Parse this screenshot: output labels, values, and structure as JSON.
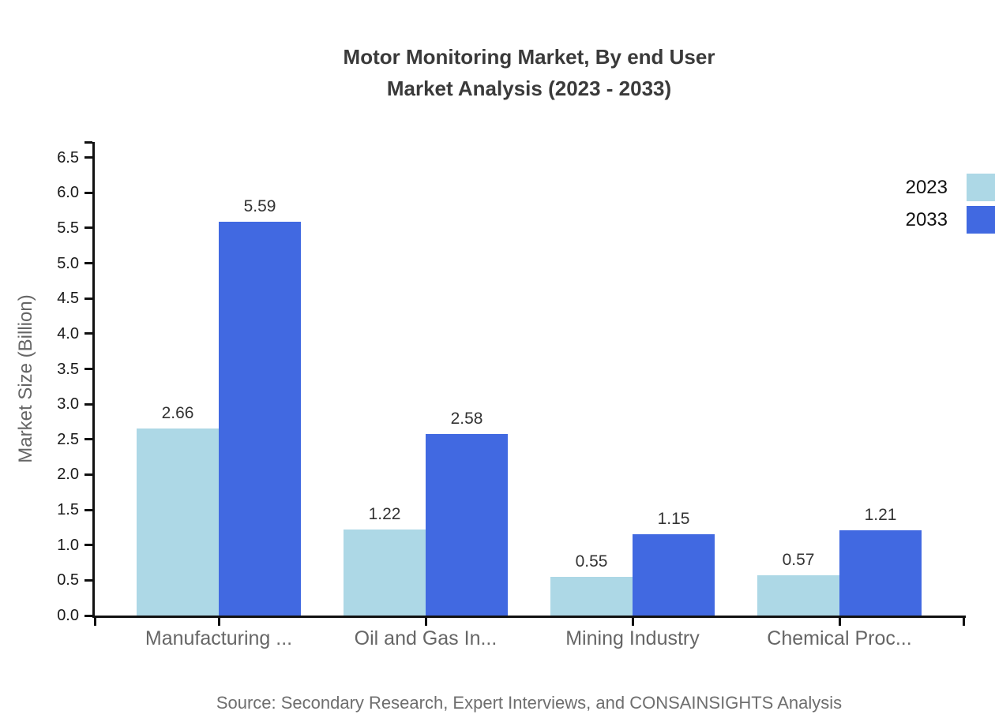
{
  "title": {
    "line1": "Motor Monitoring Market, By end User",
    "line2": "Market Analysis (2023 - 2033)"
  },
  "source": "Source: Secondary Research, Expert Interviews, and CONSAINSIGHTS Analysis",
  "chart_data": {
    "type": "bar",
    "title": "Motor Monitoring Market, By end User Market Analysis (2023 - 2033)",
    "categories": [
      "Manufacturing ...",
      "Oil and Gas In...",
      "Mining Industry",
      "Chemical Proc..."
    ],
    "series": [
      {
        "name": "2023",
        "color": "#ADD8E6",
        "values": [
          2.66,
          1.22,
          0.55,
          0.57
        ]
      },
      {
        "name": "2033",
        "color": "#4169E1",
        "values": [
          5.59,
          2.58,
          1.15,
          1.21
        ]
      }
    ],
    "xlabel": "",
    "ylabel": "Market Size (Billion)",
    "ylim": [
      0,
      6.72
    ],
    "yticks": [
      0.0,
      0.5,
      1.0,
      1.5,
      2.0,
      2.5,
      3.0,
      3.5,
      4.0,
      4.5,
      5.0,
      5.5,
      6.0,
      6.5
    ],
    "grid": false,
    "value_labels": true,
    "legend_position": "top-right",
    "colors": {
      "axis": "#111111",
      "title_text": "#3a3a3a",
      "tick_text": "#1a1a1a",
      "category_text": "#666666",
      "source_text": "#6e6e6e"
    }
  }
}
